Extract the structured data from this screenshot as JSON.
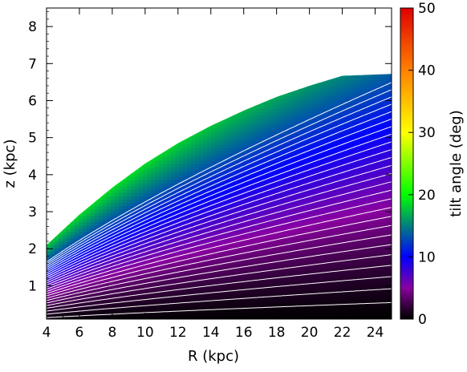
{
  "chart_data": {
    "type": "heatmap",
    "title": "",
    "xlabel": "R (kpc)",
    "ylabel": "z (kpc)",
    "colorbar_label": "tilt angle (deg)",
    "xlim": [
      4,
      25
    ],
    "ylim": [
      0.1,
      8.5
    ],
    "clim": [
      0,
      50
    ],
    "x_ticks": [
      4,
      6,
      8,
      10,
      12,
      14,
      16,
      18,
      20,
      22,
      24
    ],
    "y_ticks": [
      1,
      2,
      3,
      4,
      5,
      6,
      7,
      8
    ],
    "colorbar_ticks": [
      0,
      10,
      20,
      30,
      40,
      50
    ],
    "colormap_stops": [
      {
        "value": 0,
        "color": "#000000"
      },
      {
        "value": 2,
        "color": "#300038"
      },
      {
        "value": 5,
        "color": "#8a00a0"
      },
      {
        "value": 10,
        "color": "#0000ff"
      },
      {
        "value": 20,
        "color": "#00ff00"
      },
      {
        "value": 30,
        "color": "#ffff00"
      },
      {
        "value": 40,
        "color": "#ff8000"
      },
      {
        "value": 50,
        "color": "#e00000"
      }
    ],
    "domain_upper_boundary": {
      "R": [
        4,
        6,
        8,
        10,
        12,
        14,
        16,
        18,
        20,
        22,
        25
      ],
      "z": [
        2.1,
        2.92,
        3.65,
        4.3,
        4.85,
        5.32,
        5.73,
        6.1,
        6.4,
        6.67,
        6.72
      ]
    },
    "contour_levels_deg": [
      0.5,
      1,
      1.5,
      2,
      2.5,
      3,
      3.5,
      4,
      4.5,
      5,
      5.5,
      6,
      6.5,
      7,
      7.5,
      8,
      8.5,
      9,
      9.5,
      10,
      10.5,
      11,
      11.5,
      12,
      12.5,
      13
    ],
    "contour_color": "#ffffff",
    "grid": false
  }
}
